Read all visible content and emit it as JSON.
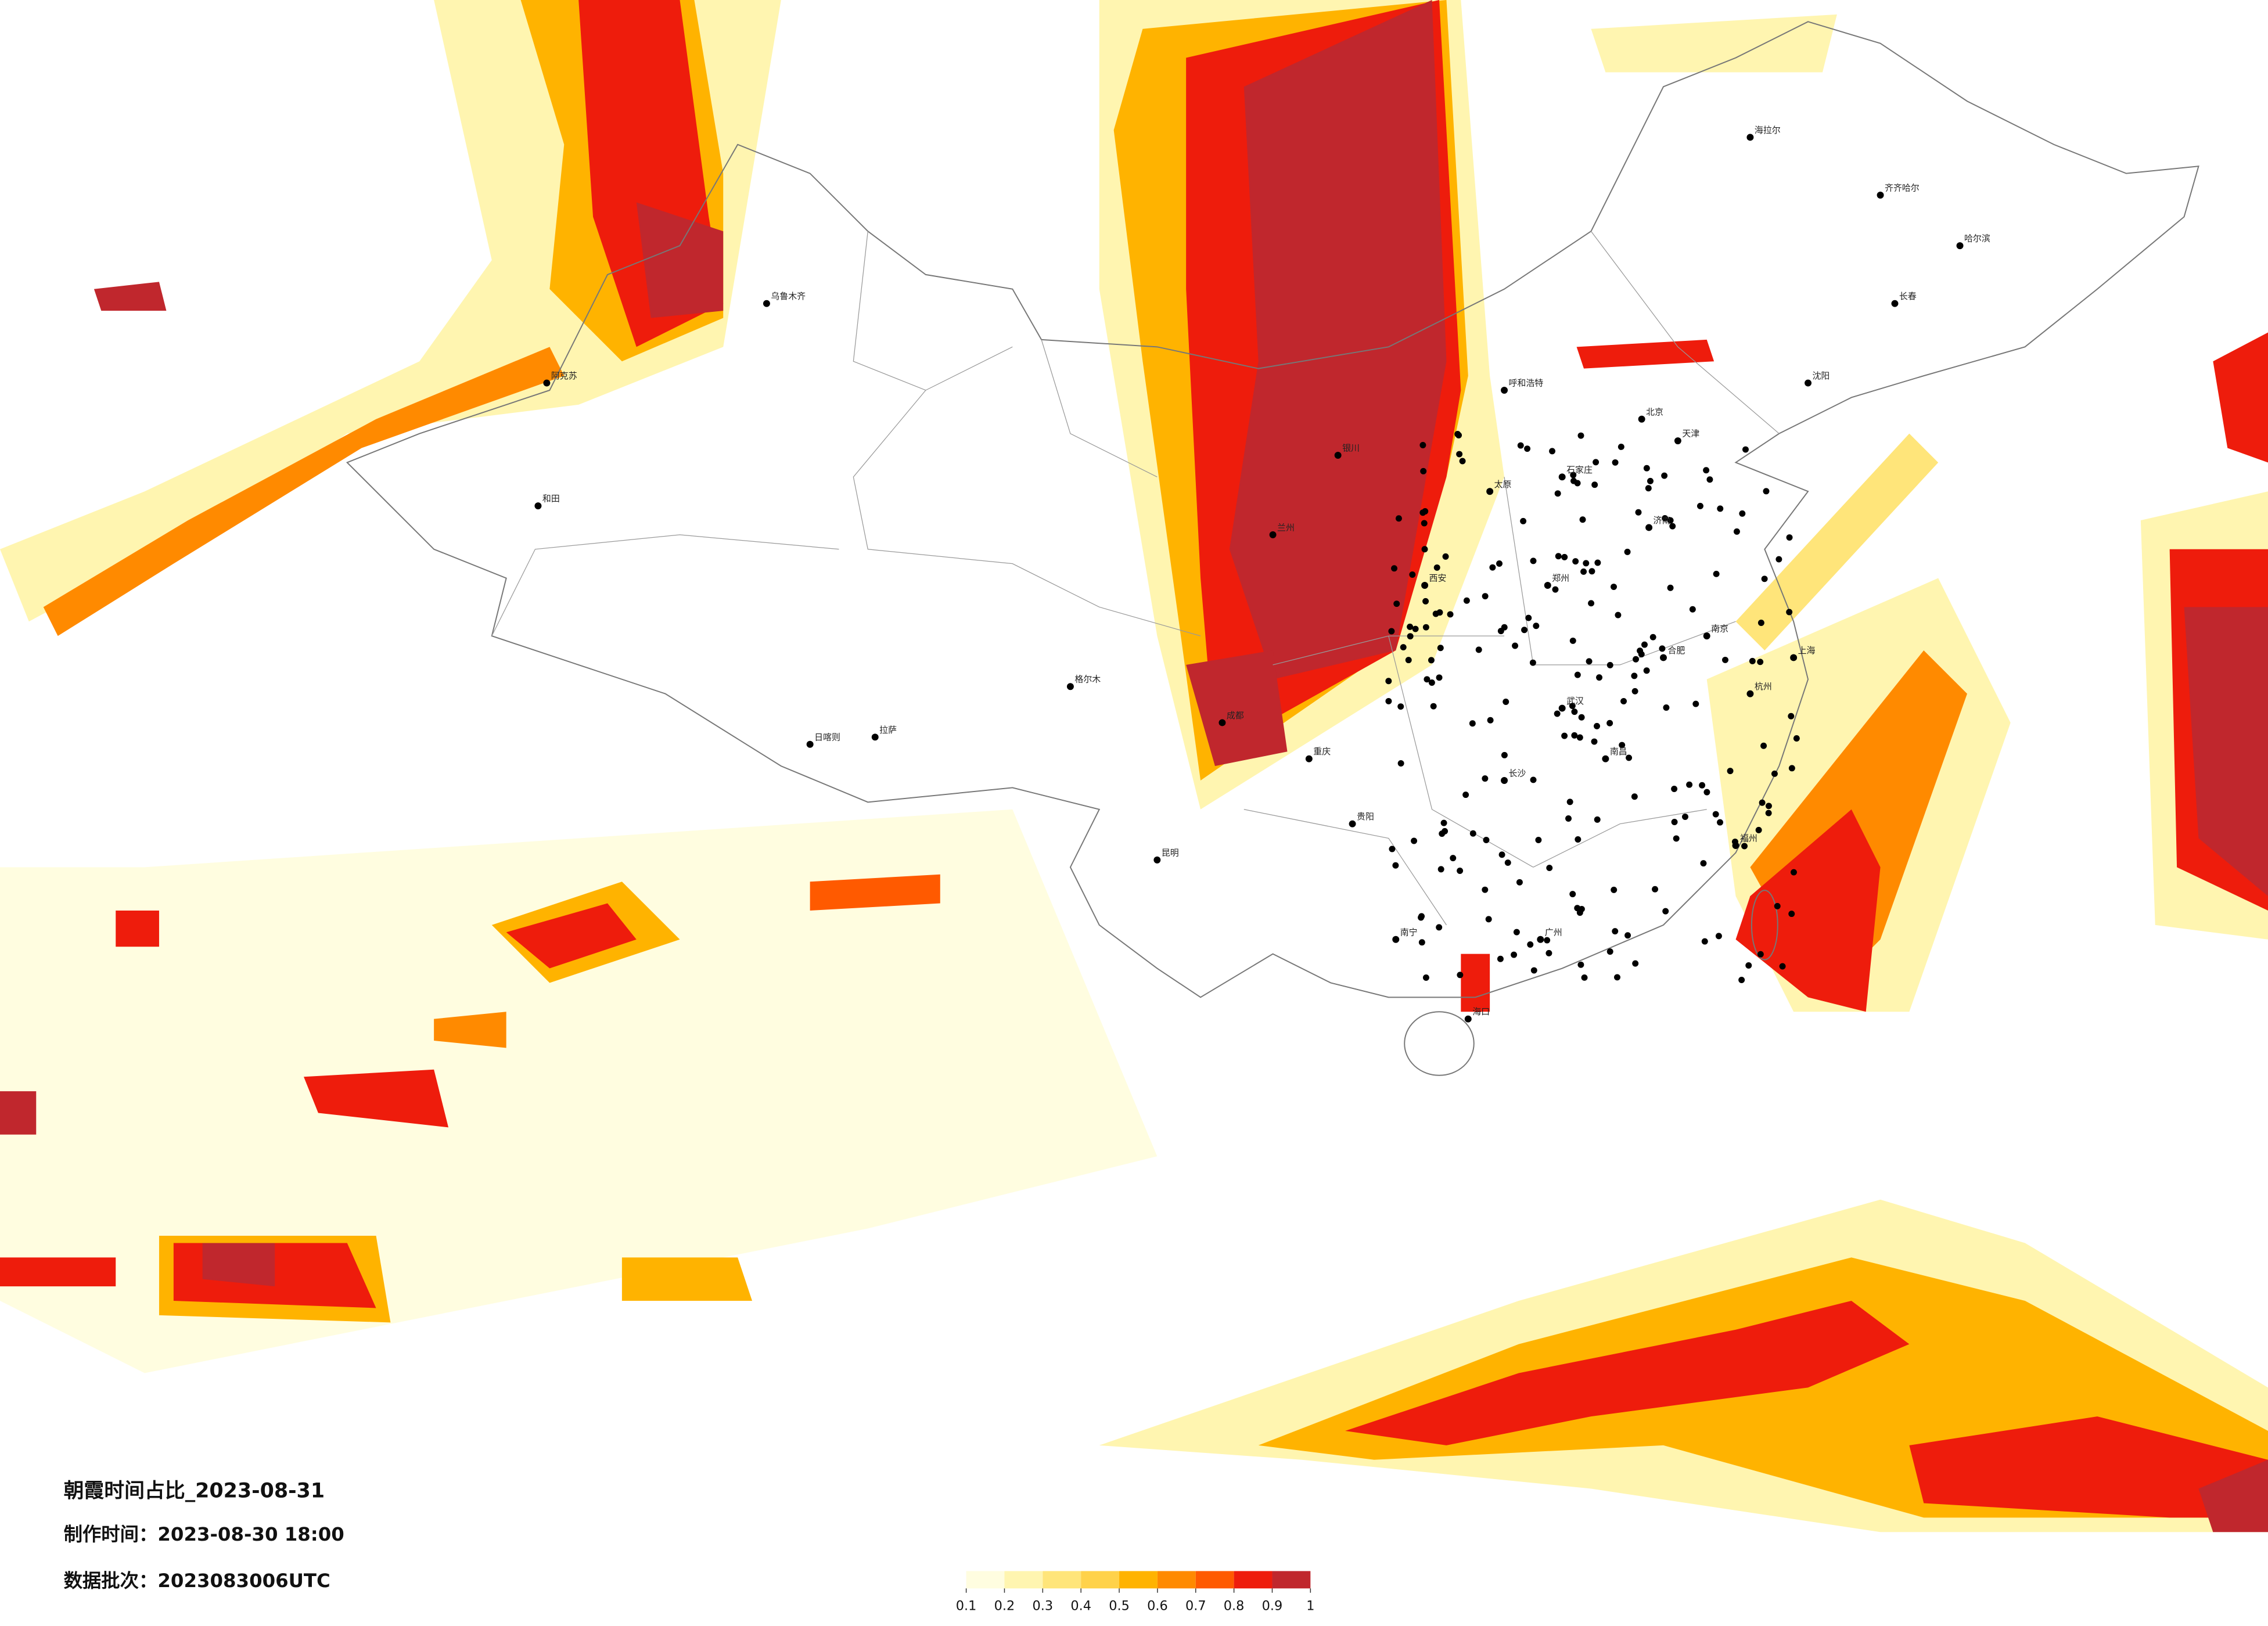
{
  "title": "朝霞时间占比_2023-08-31",
  "made_time": "制作时间：2023-08-30 18:00",
  "batch": "数据批次：2023083006UTC",
  "colorbar": {
    "ticks": [
      0.1,
      0.2,
      0.3,
      0.4,
      0.5,
      0.6,
      0.7,
      0.8,
      0.9,
      1
    ],
    "colors": [
      "#fffde0",
      "#fff5b0",
      "#ffe57a",
      "#ffd24a",
      "#ffb300",
      "#ff8a00",
      "#ff5a00",
      "#ee1c0c",
      "#c0272d"
    ]
  },
  "cities": [
    "乌鲁木齐",
    "和田",
    "阿克苏",
    "拉萨",
    "日喀则",
    "格尔木",
    "兰州",
    "西安",
    "成都",
    "重庆",
    "昆明",
    "贵阳",
    "南宁",
    "广州",
    "海口",
    "福州",
    "杭州",
    "上海",
    "南京",
    "合肥",
    "武汉",
    "长沙",
    "南昌",
    "郑州",
    "济南",
    "太原",
    "石家庄",
    "北京",
    "天津",
    "呼和浩特",
    "银川",
    "沈阳",
    "长春",
    "哈尔滨",
    "海拉尔",
    "齐齐哈尔"
  ]
}
